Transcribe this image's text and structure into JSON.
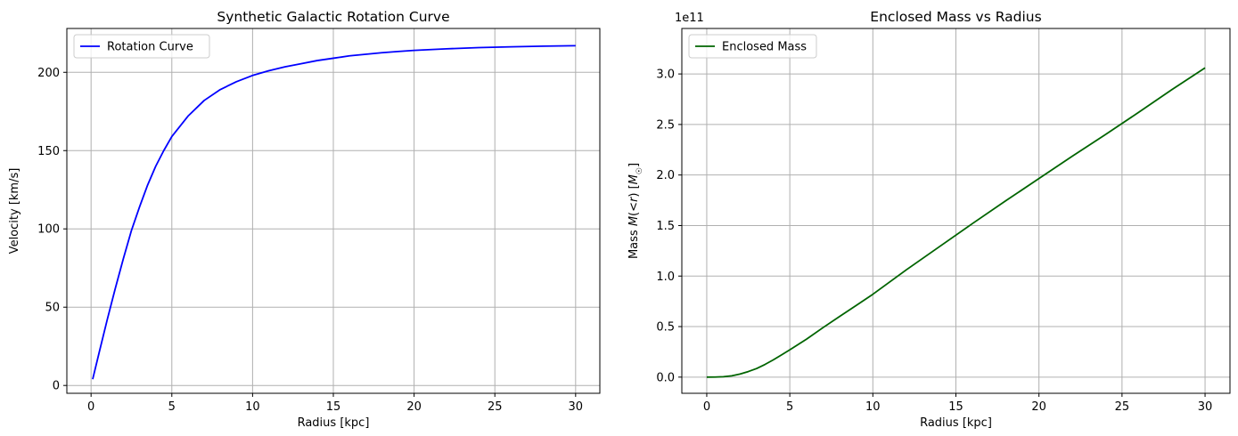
{
  "chart_data": [
    {
      "type": "line",
      "title": "Synthetic Galactic Rotation Curve",
      "xlabel": "Radius [kpc]",
      "ylabel": "Velocity [km/s]",
      "xlim": [
        -1.5,
        31.5
      ],
      "ylim": [
        -5,
        228
      ],
      "x_ticks": [
        0,
        5,
        10,
        15,
        20,
        25,
        30
      ],
      "x_tick_labels": [
        "0",
        "5",
        "10",
        "15",
        "20",
        "25",
        "30"
      ],
      "y_ticks": [
        0,
        50,
        100,
        150,
        200
      ],
      "y_tick_labels": [
        "0",
        "50",
        "100",
        "150",
        "200"
      ],
      "grid": true,
      "legend_location": "upper-left",
      "series": [
        {
          "name": "Rotation Curve",
          "color": "#0000ff",
          "x": [
            0.1,
            0.5,
            1,
            1.5,
            2,
            2.5,
            3,
            3.5,
            4,
            4.5,
            5,
            6,
            7,
            8,
            9,
            10,
            11,
            12,
            13,
            14,
            15,
            16,
            17,
            18,
            19,
            20,
            22,
            24,
            26,
            28,
            30
          ],
          "y": [
            4,
            21,
            42,
            62,
            81,
            99,
            114,
            128,
            140,
            150,
            159,
            172,
            182,
            189,
            194,
            198,
            201,
            203.5,
            205.5,
            207.5,
            209,
            210.5,
            211.5,
            212.5,
            213.3,
            214,
            215,
            215.8,
            216.3,
            216.7,
            217
          ]
        }
      ]
    },
    {
      "type": "line",
      "title": "Enclosed Mass vs Radius",
      "xlabel": "Radius [kpc]",
      "ylabel": "Mass M(<r) [M☉]",
      "ylabel_parts": [
        "Mass ",
        "M",
        "(<",
        "r",
        ") [",
        "M",
        "☉",
        "]"
      ],
      "offset_label": "1e11",
      "xlim": [
        -1.5,
        31.5
      ],
      "ylim": [
        -0.16,
        3.45
      ],
      "x_ticks": [
        0,
        5,
        10,
        15,
        20,
        25,
        30
      ],
      "x_tick_labels": [
        "0",
        "5",
        "10",
        "15",
        "20",
        "25",
        "30"
      ],
      "y_ticks": [
        0,
        0.5,
        1,
        1.5,
        2,
        2.5,
        3
      ],
      "y_tick_labels": [
        "0.0",
        "0.5",
        "1.0",
        "1.5",
        "2.0",
        "2.5",
        "3.0"
      ],
      "grid": true,
      "legend_location": "upper-left",
      "series": [
        {
          "name": "Enclosed Mass",
          "color": "#006400",
          "x": [
            0,
            0.5,
            1,
            1.5,
            2,
            2.5,
            3,
            3.5,
            4,
            4.5,
            5,
            6,
            7,
            8,
            9,
            10,
            12,
            14,
            16,
            18,
            20,
            22,
            24,
            26,
            28,
            30
          ],
          "y": [
            0,
            0.0005,
            0.004,
            0.013,
            0.03,
            0.055,
            0.085,
            0.125,
            0.17,
            0.22,
            0.27,
            0.375,
            0.49,
            0.6,
            0.71,
            0.82,
            1.06,
            1.29,
            1.52,
            1.745,
            1.965,
            2.185,
            2.4,
            2.62,
            2.845,
            3.06
          ]
        }
      ]
    }
  ]
}
